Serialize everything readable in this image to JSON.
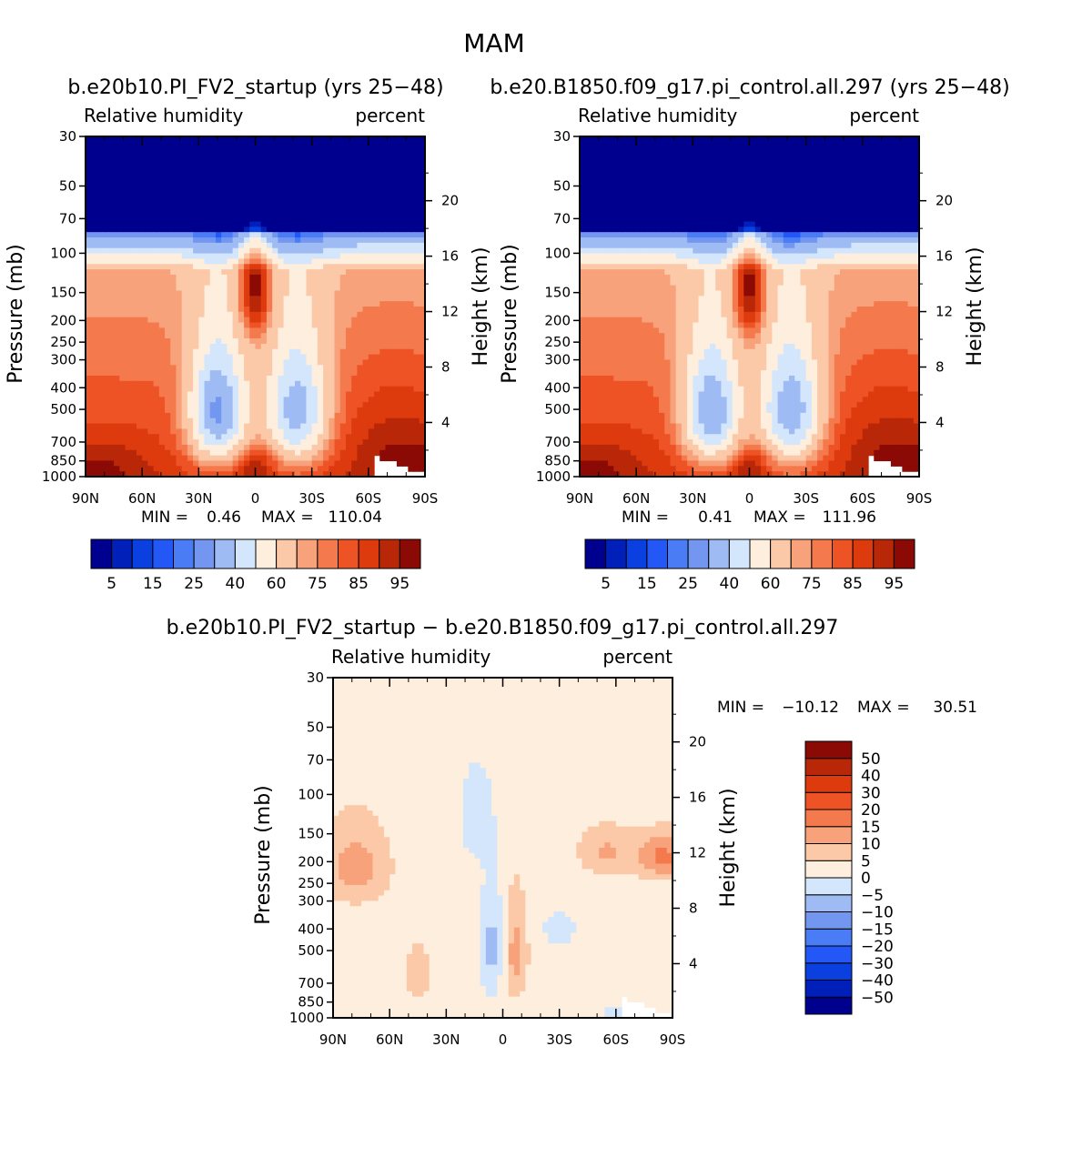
{
  "figure_title": "MAM",
  "chart_data": [
    {
      "type": "heatmap",
      "panel": "case",
      "title": "b.e20b10.PI_FV2_startup (yrs 25-48)",
      "left_label": "Relative humidity",
      "right_label": "percent",
      "xlabel": "",
      "ylabel": "Pressure (mb)",
      "y2label": "Height (km)",
      "x_ticks": [
        "90N",
        "60N",
        "30N",
        "0",
        "30S",
        "60S",
        "90S"
      ],
      "y_ticks": [
        "30",
        "50",
        "70",
        "100",
        "150",
        "200",
        "250",
        "300",
        "400",
        "500",
        "700",
        "850",
        "1000"
      ],
      "y_tick_values": [
        30,
        50,
        70,
        100,
        150,
        200,
        250,
        300,
        400,
        500,
        700,
        850,
        1000
      ],
      "y2_ticks": [
        "20",
        "16",
        "12",
        "8",
        "4"
      ],
      "y2_tick_values": [
        20,
        16,
        12,
        8,
        4
      ],
      "ylim": [
        30,
        1000
      ],
      "xlim": [
        90,
        -90
      ],
      "min_label": "MIN =",
      "min_value": "0.46",
      "max_label": "MAX =",
      "max_value": "110.04",
      "colorbar": {
        "orientation": "horizontal",
        "levels": [
          5,
          10,
          15,
          20,
          25,
          30,
          40,
          50,
          60,
          70,
          75,
          80,
          85,
          90,
          95
        ],
        "labels": [
          "5",
          "15",
          "25",
          "40",
          "60",
          "75",
          "85",
          "95"
        ],
        "colors": [
          "#00008f",
          "#0020b9",
          "#0a3fe0",
          "#2357f6",
          "#4a7cf5",
          "#7397f0",
          "#9fbbf4",
          "#d4e6fb",
          "#fdeedd",
          "#fcc9a8",
          "#f8a27b",
          "#f47a4d",
          "#ee5326",
          "#dd3a0e",
          "#b92709",
          "#8b0a05"
        ]
      }
    },
    {
      "type": "heatmap",
      "panel": "control",
      "title": "b.e20.B1850.f09_g17.pi_control.all.297 (yrs 25-48)",
      "left_label": "Relative humidity",
      "right_label": "percent",
      "xlabel": "",
      "ylabel": "Pressure (mb)",
      "y2label": "Height (km)",
      "x_ticks": [
        "90N",
        "60N",
        "30N",
        "0",
        "30S",
        "60S",
        "90S"
      ],
      "y_ticks": [
        "30",
        "50",
        "70",
        "100",
        "150",
        "200",
        "250",
        "300",
        "400",
        "500",
        "700",
        "850",
        "1000"
      ],
      "y_tick_values": [
        30,
        50,
        70,
        100,
        150,
        200,
        250,
        300,
        400,
        500,
        700,
        850,
        1000
      ],
      "y2_ticks": [
        "20",
        "16",
        "12",
        "8",
        "4"
      ],
      "y2_tick_values": [
        20,
        16,
        12,
        8,
        4
      ],
      "ylim": [
        30,
        1000
      ],
      "xlim": [
        90,
        -90
      ],
      "min_label": "MIN =",
      "min_value": "0.41",
      "max_label": "MAX =",
      "max_value": "111.96",
      "colorbar": {
        "orientation": "horizontal",
        "levels": [
          5,
          10,
          15,
          20,
          25,
          30,
          40,
          50,
          60,
          70,
          75,
          80,
          85,
          90,
          95
        ],
        "labels": [
          "5",
          "15",
          "25",
          "40",
          "60",
          "75",
          "85",
          "95"
        ],
        "colors": [
          "#00008f",
          "#0020b9",
          "#0a3fe0",
          "#2357f6",
          "#4a7cf5",
          "#7397f0",
          "#9fbbf4",
          "#d4e6fb",
          "#fdeedd",
          "#fcc9a8",
          "#f8a27b",
          "#f47a4d",
          "#ee5326",
          "#dd3a0e",
          "#b92709",
          "#8b0a05"
        ]
      }
    },
    {
      "type": "heatmap",
      "panel": "difference",
      "title": "b.e20b10.PI_FV2_startup - b.e20.B1850.f09_g17.pi_control.all.297",
      "left_label": "Relative humidity",
      "right_label": "percent",
      "xlabel": "",
      "ylabel": "Pressure (mb)",
      "y2label": "Height (km)",
      "x_ticks": [
        "90N",
        "60N",
        "30N",
        "0",
        "30S",
        "60S",
        "90S"
      ],
      "y_ticks": [
        "30",
        "50",
        "70",
        "100",
        "150",
        "200",
        "250",
        "300",
        "400",
        "500",
        "700",
        "850",
        "1000"
      ],
      "y_tick_values": [
        30,
        50,
        70,
        100,
        150,
        200,
        250,
        300,
        400,
        500,
        700,
        850,
        1000
      ],
      "y2_ticks": [
        "20",
        "16",
        "12",
        "8",
        "4"
      ],
      "y2_tick_values": [
        20,
        16,
        12,
        8,
        4
      ],
      "ylim": [
        30,
        1000
      ],
      "xlim": [
        90,
        -90
      ],
      "min_label": "MIN =",
      "min_value": "-10.12",
      "max_label": "MAX =",
      "max_value": "30.51",
      "colorbar": {
        "orientation": "vertical",
        "levels": [
          -50,
          -40,
          -30,
          -20,
          -15,
          -10,
          -5,
          0,
          5,
          10,
          15,
          20,
          30,
          40,
          50
        ],
        "labels": [
          "-50",
          "-40",
          "-30",
          "-20",
          "-15",
          "-10",
          "-5",
          "0",
          "5",
          "10",
          "15",
          "20",
          "30",
          "40",
          "50"
        ],
        "colors": [
          "#00008f",
          "#0020b9",
          "#0a3fe0",
          "#2357f6",
          "#4a7cf5",
          "#7397f0",
          "#9fbbf4",
          "#d4e6fb",
          "#fdeedd",
          "#fcc9a8",
          "#f8a27b",
          "#f47a4d",
          "#ee5326",
          "#dd3a0e",
          "#b92709",
          "#8b0a05"
        ]
      }
    }
  ]
}
